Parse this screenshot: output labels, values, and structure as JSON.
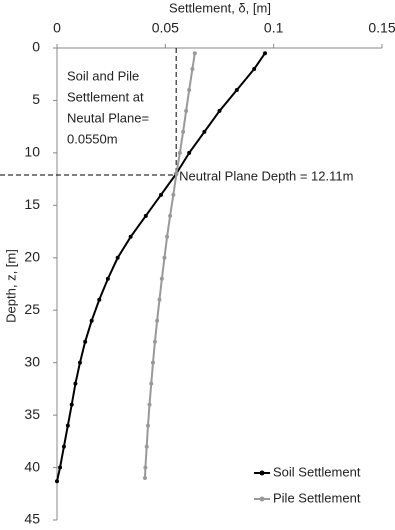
{
  "chart_data": {
    "type": "line",
    "x_label": "Settlement, δ, [m]",
    "y_label": "Depth, z, [m]",
    "xlim": [
      0,
      0.15
    ],
    "xticks": [
      0,
      0.05,
      0.1,
      0.15
    ],
    "ylim": [
      0,
      45
    ],
    "yticks": [
      0,
      5,
      10,
      15,
      20,
      25,
      30,
      35,
      40,
      45
    ],
    "y_inverted": true,
    "x_axis_position": "top",
    "legend": "lower right",
    "series": [
      {
        "name": "Soil Settlement",
        "color": "#000000",
        "x": [
          0.096,
          0.091,
          0.083,
          0.075,
          0.068,
          0.061,
          0.055,
          0.048,
          0.041,
          0.034,
          0.028,
          0.0235,
          0.0195,
          0.016,
          0.013,
          0.0106,
          0.0085,
          0.0068,
          0.005,
          0.0032,
          0.0014,
          0
        ],
        "y": [
          0.5,
          2,
          4,
          6,
          8,
          10,
          12,
          14,
          16,
          18,
          20,
          22,
          24,
          26,
          28,
          30,
          32,
          34,
          36,
          38,
          40,
          41.3
        ]
      },
      {
        "name": "Pile Settlement",
        "color": "#999999",
        "x": [
          0.0636,
          0.0625,
          0.061,
          0.0596,
          0.0582,
          0.0567,
          0.0551,
          0.0537,
          0.0522,
          0.0508,
          0.0496,
          0.0484,
          0.0473,
          0.0462,
          0.0452,
          0.0443,
          0.0435,
          0.0427,
          0.042,
          0.0414,
          0.0408,
          0.0406
        ],
        "y": [
          0.5,
          2,
          4,
          6,
          8,
          10,
          12,
          14,
          16,
          18,
          20,
          22,
          24,
          26,
          28,
          30,
          32,
          34,
          36,
          38,
          40,
          41
        ]
      }
    ],
    "neutral_plane": {
      "settlement": 0.055,
      "depth": 12.11
    },
    "annotations": {
      "settlement_note": [
        "Soil and Pile",
        "Settlement at",
        "Neutal Plane=",
        "0.0550m"
      ],
      "depth_note": "Neutral Plane Depth = 12.11m"
    }
  }
}
